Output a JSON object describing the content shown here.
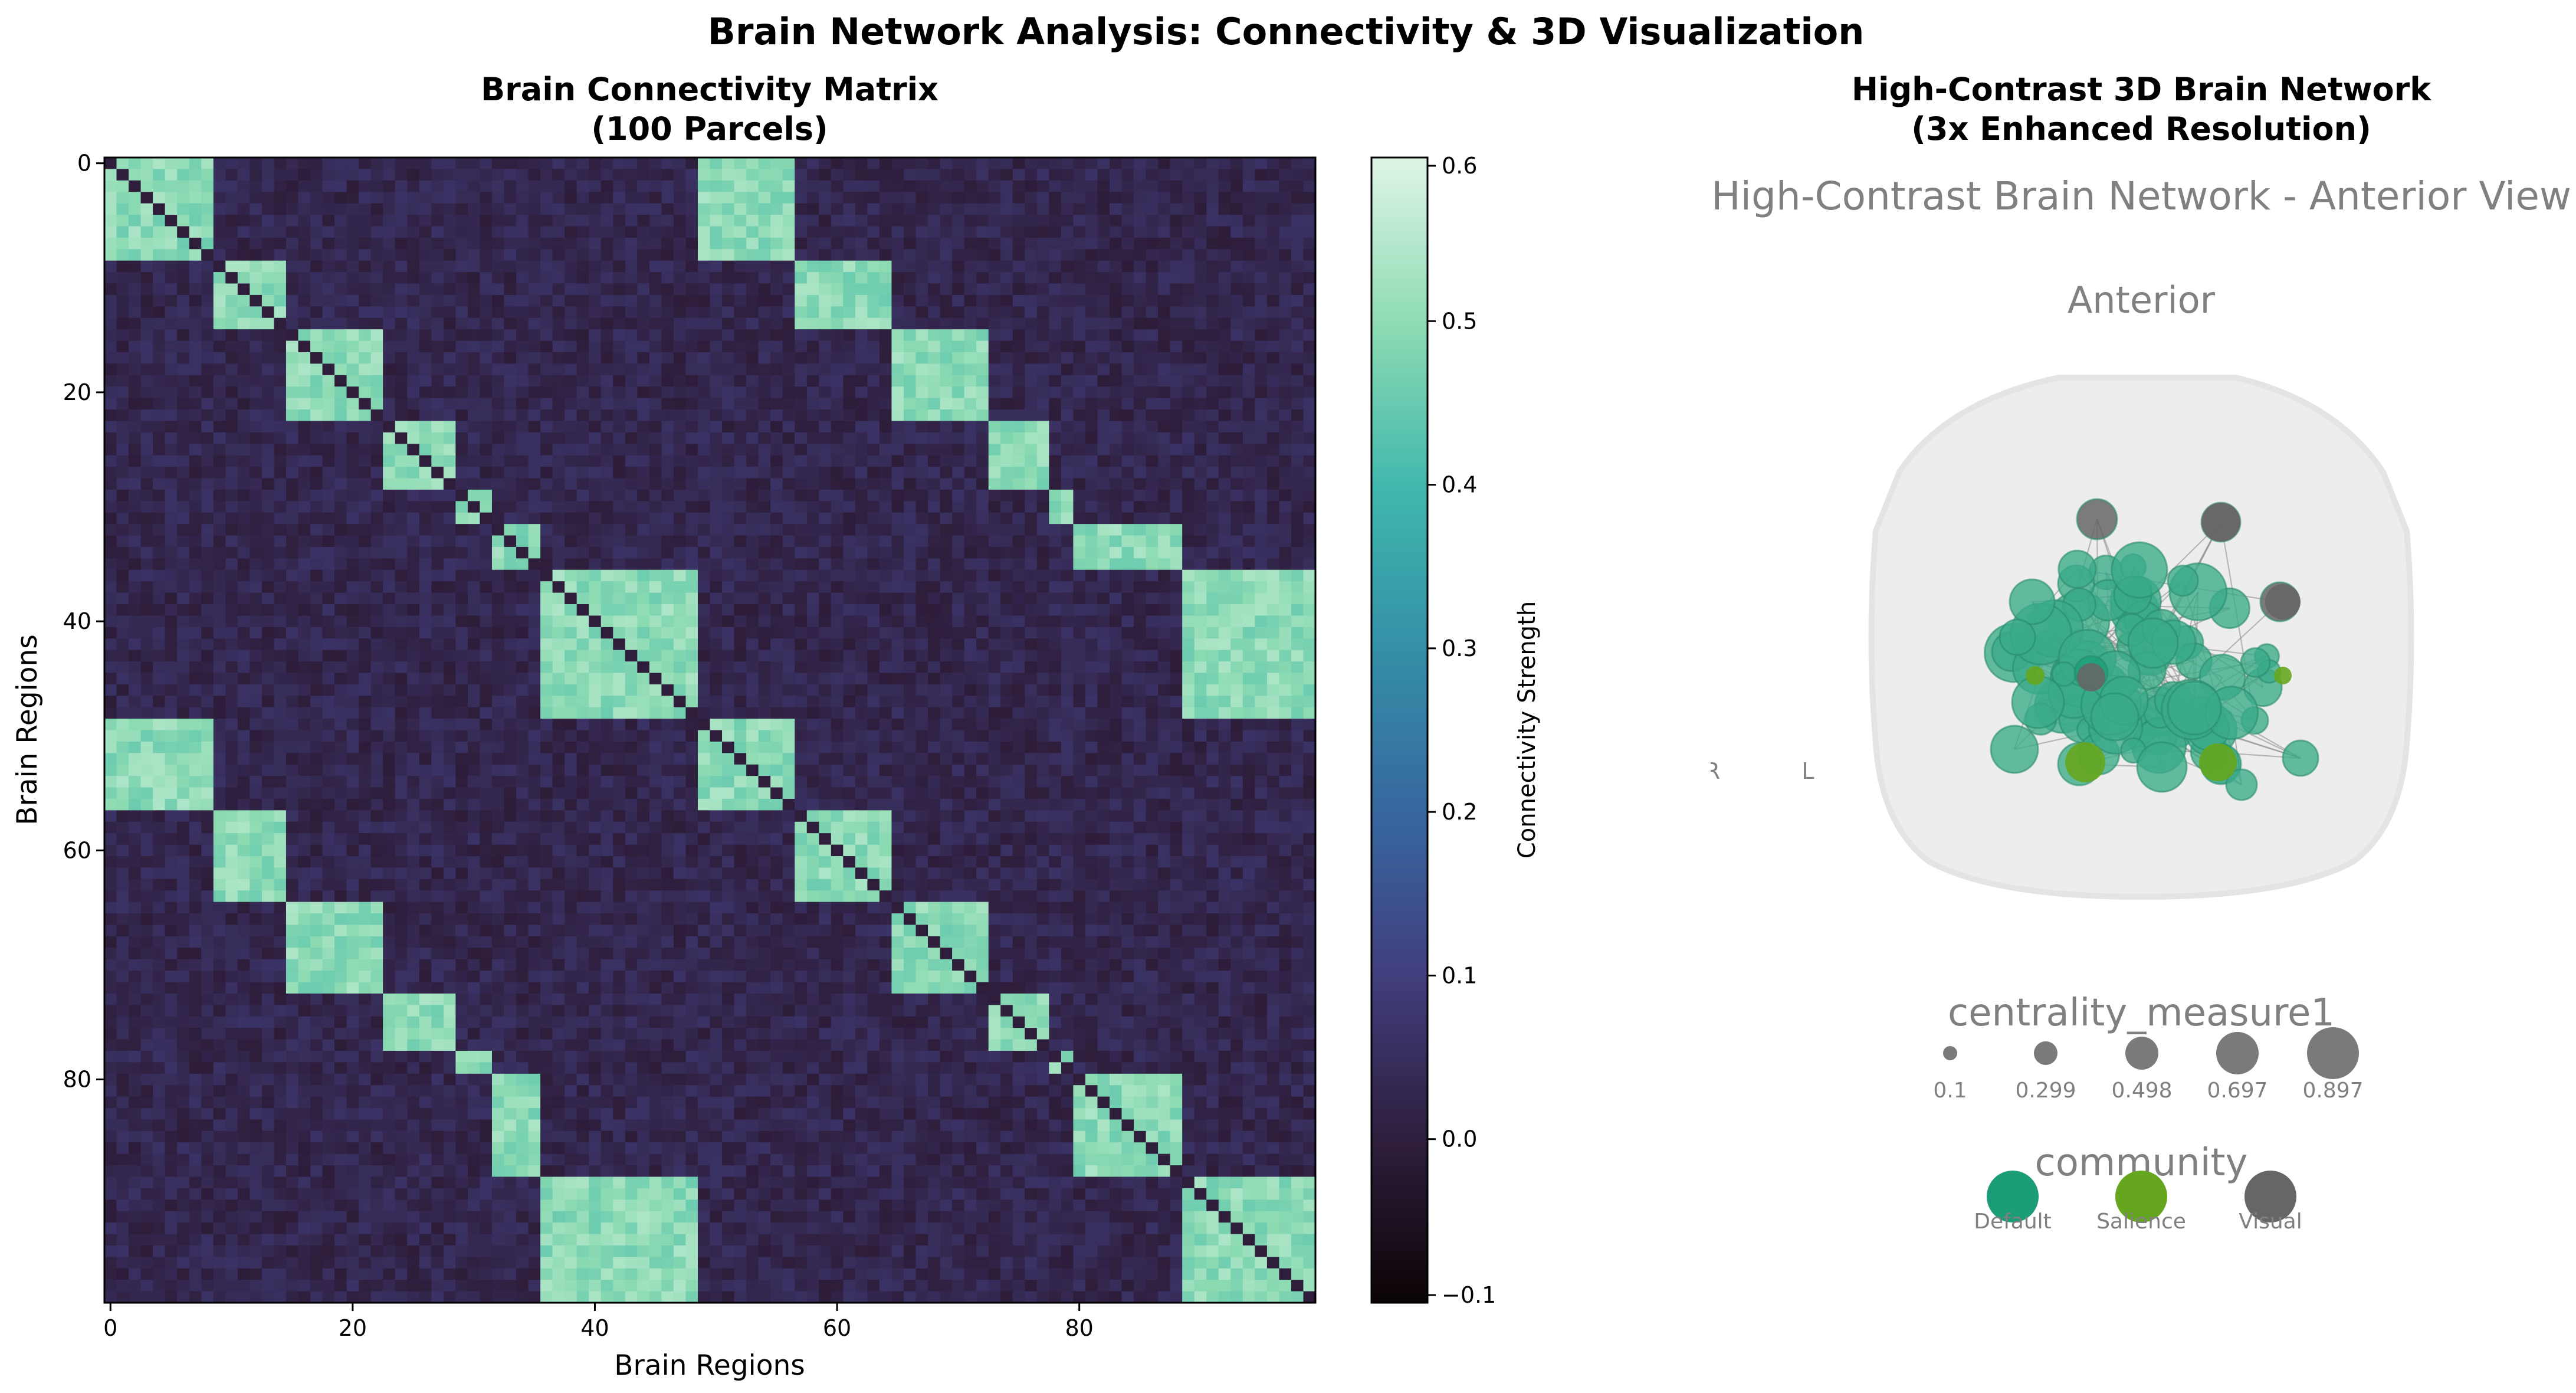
{
  "figure": {
    "suptitle": "Brain Network Analysis: Connectivity & 3D Visualization"
  },
  "chart_data": [
    {
      "type": "heatmap",
      "title_line1": "Brain Connectivity Matrix",
      "title_line2": "(100 Parcels)",
      "xlabel": "Brain Regions",
      "ylabel": "Brain Regions",
      "n_parcels": 100,
      "x_ticks": [
        "0",
        "20",
        "40",
        "60",
        "80"
      ],
      "y_ticks": [
        "0",
        "20",
        "40",
        "60",
        "80"
      ],
      "module_blocks": [
        [
          0,
          8
        ],
        [
          9,
          14
        ],
        [
          15,
          22
        ],
        [
          23,
          28
        ],
        [
          29,
          31
        ],
        [
          32,
          35
        ],
        [
          36,
          48
        ],
        [
          49,
          56
        ],
        [
          57,
          64
        ],
        [
          65,
          72
        ],
        [
          73,
          77
        ],
        [
          78,
          79
        ],
        [
          80,
          88
        ],
        [
          89,
          99
        ]
      ],
      "value_in_module": 0.5,
      "value_between_modules": 0.03,
      "value_diagonal": 0.0,
      "colorbar": {
        "label": "Connectivity Strength",
        "vmin": -0.1,
        "vmax": 0.6,
        "ticks": [
          "−0.1",
          "0.0",
          "0.1",
          "0.2",
          "0.3",
          "0.4",
          "0.5",
          "0.6"
        ],
        "colors": [
          "#0b0405",
          "#2e1e3c",
          "#413d7b",
          "#37659e",
          "#348fa7",
          "#40b7ad",
          "#8bdab2",
          "#def5e5"
        ]
      }
    },
    {
      "type": "scatter",
      "title_line1": "High-Contrast 3D Brain Network",
      "title_line2": "(3x Enhanced Resolution)",
      "view_title": "High-Contrast Brain Network - Anterior View",
      "view_label": "Anterior",
      "side_left": "R",
      "side_right": "L",
      "size_legend": {
        "title": "centrality_measure1",
        "values": [
          "0.1",
          "0.299",
          "0.498",
          "0.697",
          "0.897"
        ]
      },
      "color_legend": {
        "title": "community",
        "entries": [
          {
            "label": "Default",
            "color": "#1b9e77"
          },
          {
            "label": "Salience",
            "color": "#66a61e"
          },
          {
            "label": "Visual",
            "color": "#666666"
          }
        ]
      },
      "node_color_main": "#3aaa88"
    }
  ]
}
